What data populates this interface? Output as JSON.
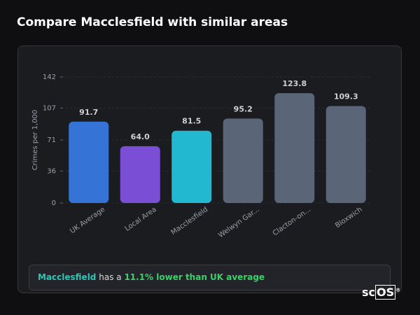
{
  "header": {
    "title": "Compare Macclesfield with similar areas"
  },
  "chart_data": {
    "type": "bar",
    "y_label": "Crimes per 1,000",
    "categories": [
      "UK Average",
      "Local Area",
      "Macclesfield",
      "Welwyn Gar...",
      "Clacton-on...",
      "Bloxwich"
    ],
    "values": [
      91.7,
      64.0,
      81.5,
      95.2,
      123.8,
      109.3
    ],
    "value_labels": [
      "91.7",
      "64.0",
      "81.5",
      "95.2",
      "123.8",
      "109.3"
    ],
    "colors": [
      "#3574d6",
      "#7a4fd6",
      "#22b8cf",
      "#5a6577",
      "#5a6577",
      "#5a6577"
    ],
    "ylim": [
      0,
      142
    ],
    "yticks": [
      0,
      36,
      71,
      107,
      142
    ],
    "grid": true
  },
  "summary": {
    "area": "Macclesfield",
    "text": "has a",
    "highlight": "11.1% lower than UK average"
  },
  "logo": {
    "prefix": "sc",
    "boxed": "OS",
    "mark": "®"
  }
}
